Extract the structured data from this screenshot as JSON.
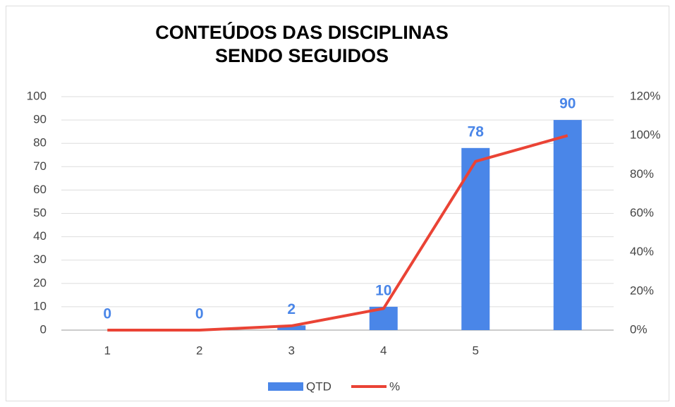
{
  "chart_data": {
    "type": "bar",
    "title": "CONTEÚDOS DAS DISCIPLINAS SENDO SEGUIDOS",
    "categories": [
      "1",
      "2",
      "3",
      "4",
      "5",
      null
    ],
    "series": [
      {
        "name": "QTD",
        "type": "bar",
        "color": "#4a86e8",
        "values": [
          0,
          0,
          2,
          10,
          78,
          90
        ]
      },
      {
        "name": "%",
        "type": "line",
        "axis": "y2",
        "color": "#ea4335",
        "values": [
          0,
          0,
          2.2,
          11.1,
          86.7,
          100
        ]
      }
    ],
    "ylim": [
      0,
      100
    ],
    "yticks": [
      0,
      10,
      20,
      30,
      40,
      50,
      60,
      70,
      80,
      90,
      100
    ],
    "y2lim": [
      0,
      120
    ],
    "y2ticks": [
      {
        "value": 0,
        "label": "0%"
      },
      {
        "value": 20,
        "label": "20%"
      },
      {
        "value": 40,
        "label": "40%"
      },
      {
        "value": 60,
        "label": "60%"
      },
      {
        "value": 80,
        "label": "80%"
      },
      {
        "value": 100,
        "label": "100%"
      },
      {
        "value": 120,
        "label": "120%"
      }
    ],
    "grid": true,
    "legend": "bottom"
  }
}
